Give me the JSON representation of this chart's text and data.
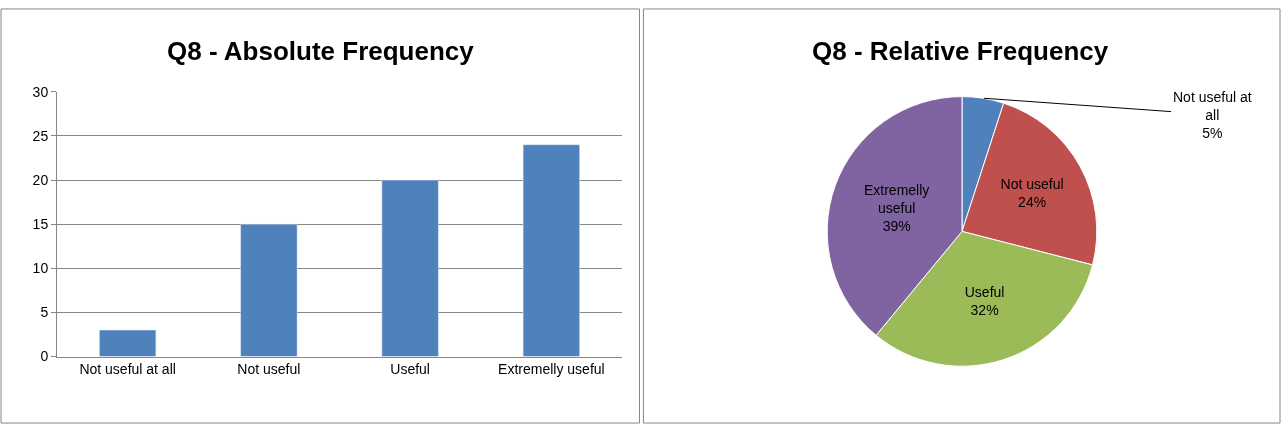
{
  "chart_data": [
    {
      "type": "bar",
      "title": "Q8 - Absolute Frequency",
      "categories": [
        "Not useful at all",
        "Not useful",
        "Useful",
        "Extremelly useful"
      ],
      "values": [
        3,
        15,
        20,
        24
      ],
      "color": "#4f81bd",
      "ylim": [
        0,
        30
      ],
      "yticks": [
        0,
        5,
        10,
        15,
        20,
        25,
        30
      ],
      "grid": "y"
    },
    {
      "type": "pie",
      "title": "Q8 - Relative Frequency",
      "categories": [
        "Not useful at all",
        "Not useful",
        "Useful",
        "Extremelly useful"
      ],
      "values": [
        5,
        24,
        32,
        39
      ],
      "value_labels": [
        "5%",
        "24%",
        "32%",
        "39%"
      ],
      "colors": [
        "#4f81bd",
        "#c0504d",
        "#9bbb59",
        "#8064a2"
      ]
    }
  ]
}
